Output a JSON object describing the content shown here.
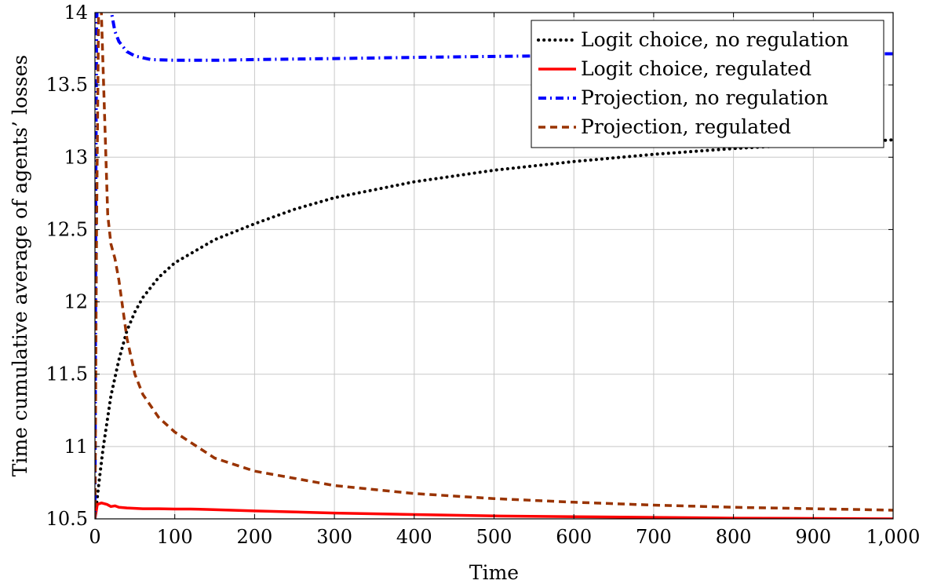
{
  "chart_data": {
    "type": "line",
    "title": "",
    "xlabel": "Time",
    "ylabel": "Time cumulative average of agents’ losses",
    "xlim": [
      0,
      1000
    ],
    "ylim": [
      10.5,
      14
    ],
    "xticks": [
      0,
      100,
      200,
      300,
      400,
      500,
      600,
      700,
      800,
      900,
      1000
    ],
    "xtick_labels": [
      "0",
      "100",
      "200",
      "300",
      "400",
      "500",
      "600",
      "700",
      "800",
      "900",
      "1,000"
    ],
    "yticks": [
      10.5,
      11,
      11.5,
      12,
      12.5,
      13,
      13.5,
      14
    ],
    "ytick_labels": [
      "10.5",
      "11",
      "11.5",
      "12",
      "12.5",
      "13",
      "13.5",
      "14"
    ],
    "grid": true,
    "legend_position": "top-right",
    "series": [
      {
        "name": "Logit choice, no regulation",
        "color": "#000000",
        "style": "dotted",
        "x": [
          0,
          5,
          10,
          20,
          30,
          40,
          50,
          60,
          80,
          100,
          150,
          200,
          250,
          300,
          400,
          500,
          600,
          700,
          800,
          900,
          1000
        ],
        "y": [
          10.5,
          10.75,
          10.98,
          11.35,
          11.6,
          11.8,
          11.93,
          12.03,
          12.17,
          12.27,
          12.43,
          12.54,
          12.64,
          12.72,
          12.83,
          12.91,
          12.97,
          13.02,
          13.06,
          13.09,
          13.12
        ]
      },
      {
        "name": "Logit choice, regulated",
        "color": "#ff0000",
        "style": "solid",
        "x": [
          0,
          3,
          8,
          15,
          20,
          25,
          30,
          40,
          60,
          80,
          100,
          120,
          140,
          200,
          300,
          400,
          500,
          600,
          700,
          800,
          900,
          1000
        ],
        "y": [
          10.5,
          10.6,
          10.61,
          10.6,
          10.585,
          10.59,
          10.58,
          10.575,
          10.57,
          10.57,
          10.568,
          10.568,
          10.565,
          10.555,
          10.54,
          10.53,
          10.52,
          10.515,
          10.51,
          10.505,
          10.503,
          10.5
        ]
      },
      {
        "name": "Projection, no regulation",
        "color": "#0000ff",
        "style": "dash-dot",
        "x": [
          0,
          1,
          2,
          4,
          6,
          10,
          15,
          20,
          25,
          30,
          40,
          50,
          70,
          100,
          150,
          200,
          300,
          400,
          500,
          600,
          700,
          800,
          900,
          1000
        ],
        "y": [
          10.5,
          12.8,
          13.9,
          14.3,
          14.3,
          14.2,
          14.1,
          14.02,
          13.87,
          13.8,
          13.73,
          13.7,
          13.675,
          13.67,
          13.67,
          13.675,
          13.682,
          13.69,
          13.697,
          13.703,
          13.707,
          13.71,
          13.713,
          13.715
        ]
      },
      {
        "name": "Projection, regulated",
        "color": "#993300",
        "style": "dashed",
        "x": [
          0,
          2,
          5,
          8,
          12,
          16,
          20,
          25,
          30,
          40,
          50,
          60,
          80,
          100,
          150,
          200,
          300,
          400,
          500,
          600,
          700,
          800,
          900,
          1000
        ],
        "y": [
          10.5,
          12.5,
          14.3,
          14.0,
          13.3,
          12.6,
          12.4,
          12.3,
          12.15,
          11.75,
          11.5,
          11.36,
          11.2,
          11.1,
          10.92,
          10.83,
          10.73,
          10.675,
          10.64,
          10.615,
          10.595,
          10.58,
          10.57,
          10.56
        ]
      }
    ]
  }
}
